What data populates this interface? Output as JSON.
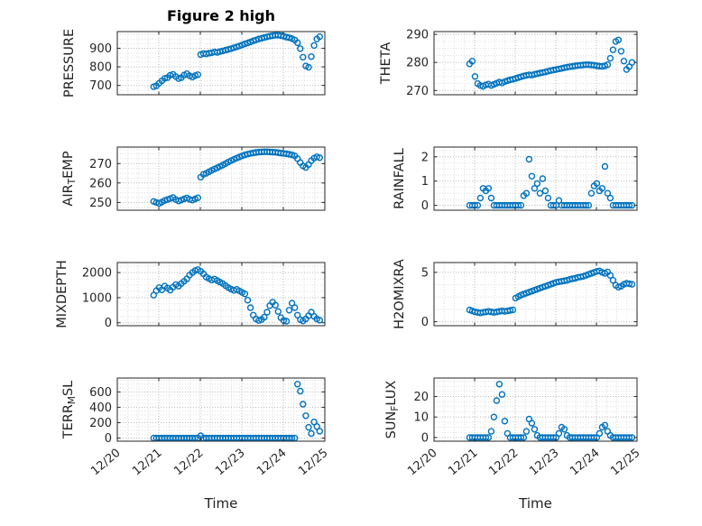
{
  "figure": {
    "title": "Figure 2 high",
    "xlabel": "Time",
    "marker_color": "#0072BD",
    "marker": "circle-open"
  },
  "chart_data": {
    "type": "scatter",
    "title": "Figure 2 high",
    "xlabel": "Time",
    "grid": true,
    "minor_grid": true,
    "x_unit": "days since 12/20",
    "xlim": [
      0,
      5
    ],
    "xticks": [
      0,
      1,
      2,
      3,
      4,
      5
    ],
    "xtick_labels": [
      "12/20",
      "12/21",
      "12/22",
      "12/23",
      "12/24",
      "12/25"
    ],
    "x": [
      0.875,
      0.942,
      1.008,
      1.075,
      1.142,
      1.208,
      1.275,
      1.342,
      1.408,
      1.475,
      1.542,
      1.608,
      1.675,
      1.742,
      1.808,
      1.875,
      1.942,
      2.008,
      2.075,
      2.142,
      2.208,
      2.275,
      2.342,
      2.408,
      2.475,
      2.542,
      2.608,
      2.675,
      2.742,
      2.808,
      2.875,
      2.942,
      3.008,
      3.075,
      3.142,
      3.208,
      3.275,
      3.342,
      3.408,
      3.475,
      3.542,
      3.608,
      3.675,
      3.742,
      3.808,
      3.875,
      3.942,
      4.008,
      4.075,
      4.142,
      4.208,
      4.275,
      4.342,
      4.408,
      4.475,
      4.542,
      4.608,
      4.675,
      4.742,
      4.808,
      4.875
    ],
    "subplots": [
      {
        "name": "pressure",
        "label": "PRESSURE",
        "label_parts": [
          [
            "PRESSURE",
            false
          ]
        ],
        "yticks": [
          700,
          800,
          900
        ],
        "ylim": [
          650,
          990
        ],
        "y": [
          693,
          698,
          712,
          725,
          738,
          742,
          755,
          760,
          748,
          737,
          742,
          756,
          763,
          752,
          745,
          753,
          758,
          866,
          872,
          870,
          874,
          876,
          880,
          878,
          882,
          886,
          890,
          894,
          898,
          903,
          908,
          913,
          918,
          924,
          929,
          934,
          940,
          945,
          950,
          954,
          958,
          962,
          965,
          968,
          970,
          971,
          968,
          965,
          960,
          957,
          952,
          945,
          930,
          898,
          852,
          805,
          798,
          855,
          915,
          950,
          963
        ]
      },
      {
        "name": "theta",
        "label": "THETA",
        "label_parts": [
          [
            "THETA",
            false
          ]
        ],
        "yticks": [
          270,
          280,
          290
        ],
        "ylim": [
          268.5,
          291
        ],
        "y": [
          279.5,
          280.5,
          275,
          272.5,
          271.8,
          271.5,
          272,
          272.3,
          271.8,
          272.2,
          272.6,
          273,
          272.7,
          273.2,
          273.5,
          273.8,
          274,
          274.3,
          274.6,
          274.9,
          275.2,
          275.4,
          275.6,
          275.5,
          275.8,
          276,
          276.2,
          276.4,
          276.6,
          276.9,
          277.1,
          277.3,
          277.5,
          277.7,
          277.9,
          278.1,
          278.3,
          278.5,
          278.6,
          278.8,
          278.9,
          279,
          279.1,
          279.2,
          279.2,
          279.1,
          279,
          278.8,
          278.7,
          278.6,
          278.8,
          279.2,
          281.5,
          284.5,
          287.5,
          288,
          284,
          280.5,
          277.5,
          278.5,
          280
        ]
      },
      {
        "name": "air-temp",
        "label": "AIR_TEMP",
        "label_parts": [
          [
            "AIR",
            false
          ],
          [
            "T",
            true
          ],
          [
            "EMP",
            false
          ]
        ],
        "yticks": [
          250,
          260,
          270
        ],
        "ylim": [
          246,
          278.5
        ],
        "y": [
          250.5,
          250,
          249.5,
          250.2,
          251,
          251.5,
          252,
          252.5,
          251.5,
          250.8,
          251.2,
          251.8,
          252.3,
          251.6,
          251.2,
          251.8,
          252.4,
          263,
          264.5,
          265,
          265.8,
          266.5,
          267.2,
          267.8,
          268.5,
          269.2,
          270,
          270.8,
          271.5,
          272.2,
          272.8,
          273.4,
          274,
          274.5,
          274.9,
          275.2,
          275.5,
          275.7,
          275.9,
          276,
          276.1,
          276.1,
          276,
          275.9,
          275.8,
          275.6,
          275.4,
          275.2,
          275,
          274.8,
          274.5,
          274,
          272.5,
          270.5,
          268.8,
          268,
          269.5,
          271.5,
          272.8,
          273.5,
          273
        ]
      },
      {
        "name": "rainfall",
        "label": "RAINFALL",
        "label_parts": [
          [
            "RAINFALL",
            false
          ]
        ],
        "yticks": [
          0,
          1,
          2
        ],
        "ylim": [
          -0.2,
          2.4
        ],
        "y": [
          0,
          0,
          0,
          0,
          0.3,
          0.7,
          0.6,
          0.7,
          0.3,
          0,
          0,
          0,
          0,
          0,
          0,
          0,
          0,
          0,
          0,
          0,
          0.4,
          0.5,
          1.9,
          1.2,
          0.7,
          0.9,
          0.5,
          1.1,
          0.6,
          0.3,
          0,
          0,
          0,
          0.2,
          0,
          0,
          0,
          0,
          0,
          0,
          0,
          0,
          0,
          0,
          0,
          0.5,
          0.8,
          0.9,
          0.6,
          0.7,
          1.6,
          0.5,
          0.3,
          0,
          0,
          0,
          0,
          0,
          0,
          0,
          0
        ]
      },
      {
        "name": "mixdepth",
        "label": "MIXDEPTH",
        "label_parts": [
          [
            "MIXDEPTH",
            false
          ]
        ],
        "yticks": [
          0,
          1000,
          2000
        ],
        "ylim": [
          -120,
          2400
        ],
        "y": [
          1100,
          1280,
          1400,
          1310,
          1460,
          1380,
          1300,
          1420,
          1520,
          1460,
          1560,
          1650,
          1750,
          1900,
          2000,
          2080,
          2120,
          2050,
          1950,
          1820,
          1760,
          1700,
          1740,
          1680,
          1620,
          1560,
          1480,
          1400,
          1340,
          1290,
          1330,
          1270,
          1210,
          1150,
          900,
          600,
          300,
          150,
          90,
          130,
          220,
          420,
          680,
          820,
          700,
          450,
          200,
          90,
          60,
          500,
          780,
          600,
          300,
          120,
          70,
          150,
          280,
          420,
          250,
          150,
          100
        ]
      },
      {
        "name": "h2omixra",
        "label": "H2OMIXRA",
        "label_parts": [
          [
            "H2OMIXRA",
            false
          ]
        ],
        "yticks": [
          0,
          5
        ],
        "ylim": [
          -0.4,
          6
        ],
        "y": [
          1.2,
          1.1,
          1,
          0.95,
          0.9,
          0.95,
          1,
          1.05,
          1,
          0.95,
          1,
          1.05,
          1.1,
          1.05,
          1.1,
          1.15,
          1.2,
          2.4,
          2.55,
          2.7,
          2.8,
          2.9,
          3,
          3.1,
          3.2,
          3.3,
          3.4,
          3.5,
          3.6,
          3.7,
          3.8,
          3.9,
          4,
          4.05,
          4.1,
          4.15,
          4.2,
          4.3,
          4.35,
          4.4,
          4.5,
          4.55,
          4.6,
          4.7,
          4.8,
          4.9,
          5,
          5.1,
          5.15,
          5,
          4.9,
          5.05,
          4.7,
          4.2,
          3.7,
          3.5,
          3.6,
          3.8,
          3.9,
          3.85,
          3.8
        ]
      },
      {
        "name": "terr-msl",
        "label": "TERR_MSL",
        "label_parts": [
          [
            "TERR",
            false
          ],
          [
            "M",
            true
          ],
          [
            "SL",
            false
          ]
        ],
        "yticks": [
          0,
          200,
          400,
          600
        ],
        "ylim": [
          -40,
          780
        ],
        "y": [
          0,
          0,
          0,
          0,
          0,
          0,
          0,
          0,
          0,
          0,
          0,
          0,
          0,
          0,
          0,
          0,
          0,
          30,
          0,
          0,
          0,
          0,
          0,
          0,
          0,
          0,
          0,
          0,
          0,
          0,
          0,
          0,
          0,
          0,
          0,
          0,
          0,
          0,
          0,
          0,
          0,
          0,
          0,
          0,
          0,
          0,
          0,
          0,
          0,
          0,
          0,
          0,
          700,
          610,
          440,
          290,
          140,
          60,
          210,
          150,
          90
        ]
      },
      {
        "name": "sun-flux",
        "label": "SUN_FLUX",
        "label_parts": [
          [
            "SUN",
            false
          ],
          [
            "F",
            true
          ],
          [
            "LUX",
            false
          ]
        ],
        "yticks": [
          0,
          10,
          20
        ],
        "ylim": [
          -1.8,
          29
        ],
        "y": [
          0,
          0,
          0,
          0,
          0,
          0,
          0,
          0,
          3,
          10,
          18,
          26,
          21,
          8,
          2,
          0,
          0,
          0,
          0,
          0,
          0,
          3,
          9,
          7,
          4,
          1,
          0,
          0,
          0,
          0,
          0,
          0,
          0,
          2,
          5,
          4,
          1,
          0,
          0,
          0,
          0,
          0,
          0,
          0,
          0,
          0,
          0,
          0,
          2,
          5,
          6,
          3,
          1,
          0,
          0,
          0,
          0,
          0,
          0,
          0,
          0
        ]
      }
    ]
  }
}
